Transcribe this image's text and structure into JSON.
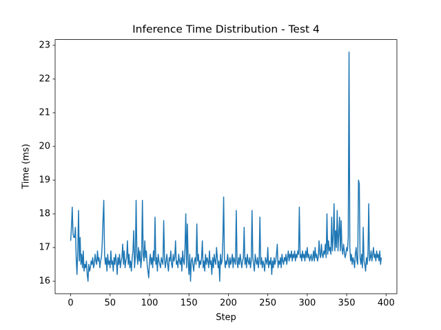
{
  "chart_data": {
    "type": "line",
    "title": "Inference Time Distribution - Test 4",
    "xlabel": "Step",
    "ylabel": "Time (ms)",
    "xlim": [
      -19.7,
      413.7
    ],
    "xticks": [
      0,
      50,
      100,
      150,
      200,
      250,
      300,
      350,
      400
    ],
    "ylim": [
      15.63,
      23.17
    ],
    "yticks": [
      16,
      17,
      18,
      19,
      20,
      21,
      22,
      23
    ],
    "color": "#1f77b4",
    "values": [
      17.2,
      17.6,
      18.2,
      17.4,
      17.3,
      17.3,
      17.6,
      16.7,
      16.2,
      16.9,
      18.1,
      16.6,
      17.3,
      16.5,
      16.8,
      16.4,
      16.9,
      16.3,
      16.5,
      16.4,
      16.6,
      16.2,
      16.0,
      16.5,
      16.3,
      16.4,
      16.6,
      16.5,
      16.7,
      16.4,
      16.5,
      16.8,
      16.6,
      16.5,
      16.9,
      16.6,
      16.7,
      16.4,
      16.6,
      16.7,
      17.1,
      17.8,
      18.4,
      16.8,
      16.5,
      16.7,
      16.3,
      16.8,
      16.5,
      16.6,
      16.4,
      16.9,
      16.5,
      16.6,
      16.3,
      16.7,
      16.5,
      16.8,
      16.6,
      16.2,
      16.7,
      16.5,
      16.8,
      16.4,
      16.6,
      16.7,
      17.1,
      16.5,
      16.9,
      16.4,
      16.6,
      16.7,
      17.2,
      16.5,
      16.8,
      16.4,
      16.6,
      16.3,
      16.7,
      16.9,
      17.5,
      16.4,
      16.7,
      18.4,
      16.8,
      16.5,
      17.0,
      16.6,
      16.9,
      16.4,
      16.7,
      18.4,
      16.8,
      16.6,
      17.2,
      16.7,
      16.9,
      16.5,
      16.3,
      16.1,
      16.6,
      16.8,
      16.5,
      16.7,
      16.4,
      16.9,
      16.6,
      17.9,
      16.5,
      16.7,
      16.3,
      16.8,
      16.6,
      16.5,
      16.4,
      16.7,
      16.6,
      16.5,
      17.8,
      16.7,
      16.4,
      16.6,
      16.8,
      16.5,
      16.3,
      16.7,
      16.6,
      16.9,
      16.5,
      16.4,
      16.8,
      16.6,
      16.7,
      17.2,
      16.5,
      16.6,
      16.4,
      16.8,
      16.6,
      16.5,
      16.7,
      16.3,
      16.9,
      16.6,
      16.5,
      17.0,
      18.0,
      16.4,
      17.7,
      16.6,
      16.2,
      16.8,
      16.0,
      16.6,
      16.7,
      16.5,
      16.3,
      16.6,
      16.7,
      16.5,
      17.7,
      16.6,
      16.8,
      16.4,
      16.6,
      16.5,
      16.7,
      17.2,
      16.4,
      16.6,
      16.3,
      16.8,
      16.5,
      16.7,
      16.6,
      16.4,
      16.9,
      16.5,
      16.6,
      16.2,
      16.7,
      16.4,
      16.8,
      16.6,
      16.5,
      17.0,
      16.7,
      16.4,
      16.6,
      16.0,
      16.8,
      16.5,
      16.6,
      17.2,
      18.5,
      16.7,
      16.4,
      16.6,
      16.5,
      16.8,
      16.6,
      16.4,
      16.7,
      16.5,
      16.6,
      16.8,
      16.4,
      16.7,
      16.6,
      16.5,
      18.1,
      16.6,
      16.4,
      16.7,
      16.5,
      16.8,
      16.6,
      16.4,
      16.6,
      16.7,
      17.6,
      16.5,
      16.7,
      16.4,
      16.8,
      16.6,
      16.5,
      16.7,
      16.4,
      16.6,
      18.1,
      16.7,
      16.5,
      16.3,
      16.8,
      16.6,
      16.5,
      16.7,
      16.4,
      16.6,
      17.9,
      16.5,
      16.7,
      16.4,
      16.6,
      16.5,
      16.3,
      16.7,
      16.6,
      16.5,
      17.0,
      16.4,
      16.6,
      16.5,
      16.7,
      16.2,
      16.6,
      16.4,
      16.7,
      16.5,
      16.6,
      16.8,
      17.1,
      16.4,
      16.6,
      16.5,
      16.7,
      16.4,
      16.8,
      16.6,
      16.5,
      16.7,
      16.6,
      16.8,
      16.5,
      16.7,
      16.9,
      16.6,
      16.8,
      16.7,
      16.9,
      16.6,
      16.8,
      16.7,
      16.9,
      16.6,
      16.8,
      16.7,
      16.9,
      16.8,
      18.2,
      16.7,
      16.8,
      16.6,
      16.9,
      16.7,
      16.8,
      16.6,
      16.9,
      16.7,
      17.0,
      16.7,
      16.8,
      16.6,
      16.7,
      16.8,
      16.6,
      16.7,
      16.9,
      16.6,
      17.0,
      16.7,
      16.8,
      16.6,
      16.7,
      17.2,
      16.8,
      16.7,
      17.1,
      16.8,
      16.7,
      16.9,
      16.8,
      17.1,
      16.7,
      18.0,
      16.8,
      17.2,
      16.9,
      17.0,
      16.8,
      17.9,
      16.9,
      17.3,
      18.3,
      16.9,
      17.5,
      17.0,
      18.1,
      16.9,
      17.4,
      17.9,
      16.9,
      17.8,
      17.0,
      16.8,
      17.1,
      16.9,
      16.7,
      16.8,
      17.0,
      16.9,
      17.3,
      22.8,
      17.0,
      16.6,
      16.8,
      16.5,
      16.7,
      16.6,
      16.4,
      16.8,
      17.0,
      16.6,
      16.5,
      19.0,
      18.9,
      16.7,
      16.5,
      16.8,
      16.4,
      17.6,
      16.6,
      16.5,
      16.3,
      16.7,
      16.5,
      16.8,
      18.3,
      16.6,
      16.7,
      16.9,
      16.6,
      16.8,
      17.0,
      16.7,
      16.8,
      16.6,
      16.9,
      16.7,
      16.8,
      16.6,
      16.9,
      16.5,
      16.7
    ]
  }
}
